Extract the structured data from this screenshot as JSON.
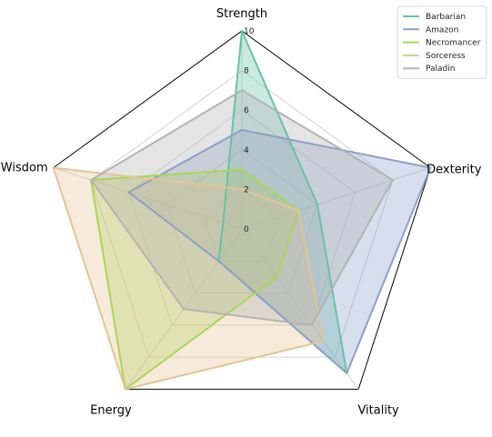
{
  "chart_data": {
    "type": "radar",
    "categories": [
      "Strength",
      "Dexterity",
      "Vitality",
      "Energy",
      "Wisdom"
    ],
    "rlim": [
      0,
      10
    ],
    "r_ticks": [
      0,
      2,
      4,
      6,
      8,
      10
    ],
    "grid": true,
    "legend_position": "top-right",
    "series": [
      {
        "name": "Barbarian",
        "values": [
          10,
          4,
          9,
          2,
          1
        ],
        "color": "#66c2a5"
      },
      {
        "name": "Amazon",
        "values": [
          5,
          10,
          9,
          2,
          6
        ],
        "color": "#8da0cb"
      },
      {
        "name": "Necromancer",
        "values": [
          3,
          3,
          3,
          10,
          8
        ],
        "color": "#a6d854"
      },
      {
        "name": "Sorceress",
        "values": [
          2,
          3,
          7,
          10,
          10
        ],
        "color": "#e5c494"
      },
      {
        "name": "Paladin",
        "values": [
          7,
          8,
          6,
          5,
          8
        ],
        "color": "#b3b3b3"
      }
    ]
  }
}
